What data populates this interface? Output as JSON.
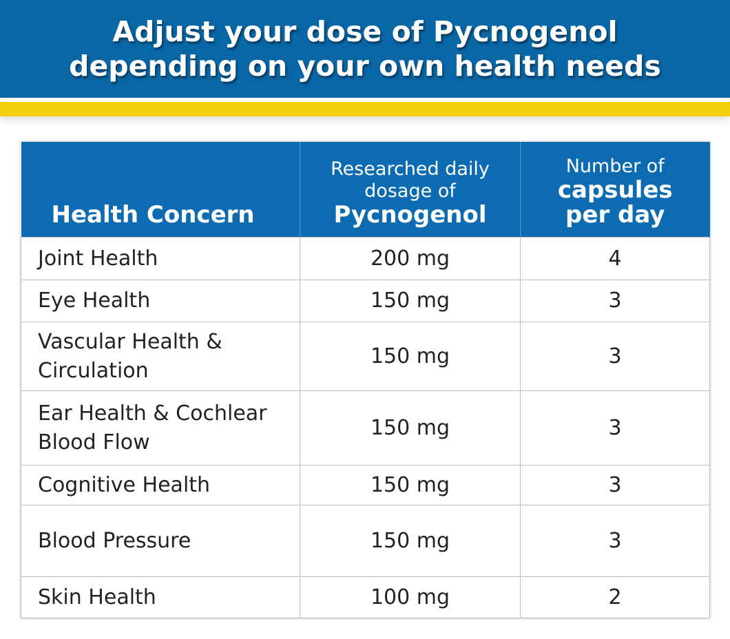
{
  "header": {
    "title": [
      "Adjust your dose of Pycnogenol",
      "depending on your own health needs"
    ]
  },
  "table": {
    "columns": [
      {
        "lines": [
          "Health Concern"
        ],
        "strong": []
      },
      {
        "lines": [
          "Researched daily",
          "dosage of"
        ],
        "strong": [
          "Pycnogenol"
        ]
      },
      {
        "lines": [
          "Number of"
        ],
        "strong": [
          "capsules",
          "per day"
        ]
      }
    ],
    "rows": [
      [
        [
          "Joint Health"
        ],
        "200 mg",
        4
      ],
      [
        [
          "Eye Health"
        ],
        "150 mg",
        3
      ],
      [
        [
          "Vascular Health &",
          "Circulation"
        ],
        "150 mg",
        3
      ],
      [
        [
          "Ear Health & Cochlear",
          "Blood Flow"
        ],
        "150 mg",
        3
      ],
      [
        [
          "Cognitive Health"
        ],
        "150 mg",
        3
      ],
      [
        [
          "Blood Pressure"
        ],
        "150 mg",
        3
      ],
      [
        [
          "Skin Health"
        ],
        "100 mg",
        2
      ]
    ]
  }
}
